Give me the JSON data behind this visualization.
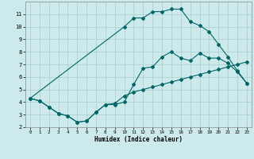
{
  "xlabel": "Humidex (Indice chaleur)",
  "background_color": "#cceaeb",
  "grid_color": "#aacccc",
  "line_color": "#006666",
  "xlim": [
    -0.5,
    23.5
  ],
  "ylim": [
    2,
    12
  ],
  "xticks": [
    0,
    1,
    2,
    3,
    4,
    5,
    6,
    7,
    8,
    9,
    10,
    11,
    12,
    13,
    14,
    15,
    16,
    17,
    18,
    19,
    20,
    21,
    22,
    23
  ],
  "yticks": [
    2,
    3,
    4,
    5,
    6,
    7,
    8,
    9,
    10,
    11
  ],
  "line1_x": [
    0,
    1,
    2,
    3,
    4,
    5,
    6,
    7,
    8,
    9,
    10,
    11,
    12,
    13,
    14,
    15,
    16,
    17,
    18,
    19,
    20,
    21,
    22,
    23
  ],
  "line1_y": [
    4.3,
    4.1,
    3.6,
    3.1,
    2.9,
    2.4,
    2.5,
    3.2,
    3.8,
    3.8,
    4.0,
    5.4,
    6.7,
    6.8,
    7.6,
    8.0,
    7.5,
    7.3,
    7.9,
    7.5,
    7.5,
    7.1,
    6.4,
    5.5
  ],
  "line2_x": [
    0,
    1,
    2,
    3,
    4,
    5,
    6,
    7,
    8,
    9,
    10,
    11,
    12,
    13,
    14,
    15,
    16,
    17,
    18,
    19,
    20,
    21,
    22,
    23
  ],
  "line2_y": [
    4.3,
    4.1,
    3.6,
    3.1,
    2.9,
    2.4,
    2.5,
    3.2,
    3.8,
    3.9,
    4.5,
    4.8,
    5.0,
    5.2,
    5.4,
    5.6,
    5.8,
    6.0,
    6.2,
    6.4,
    6.6,
    6.8,
    7.0,
    7.2
  ],
  "line3_x": [
    0,
    10,
    11,
    12,
    13,
    14,
    15,
    16,
    17,
    18,
    19,
    20,
    21,
    22,
    23
  ],
  "line3_y": [
    4.3,
    10.0,
    10.7,
    10.7,
    11.2,
    11.2,
    11.4,
    11.4,
    10.4,
    10.1,
    9.6,
    8.6,
    7.6,
    6.5,
    5.5
  ]
}
